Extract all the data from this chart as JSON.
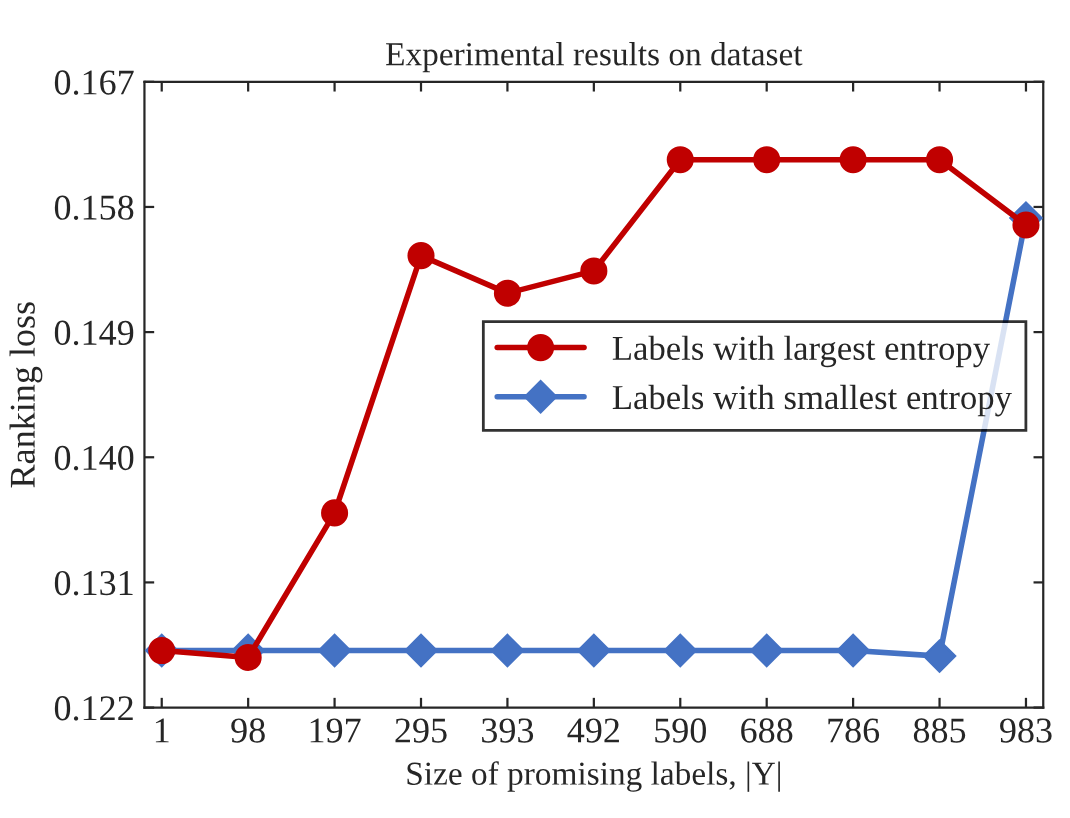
{
  "chart_data": {
    "type": "line",
    "title": "Experimental results on dataset",
    "xlabel": "Size of promising labels, |Y|",
    "ylabel": "Ranking loss",
    "categories": [
      "1",
      "98",
      "197",
      "295",
      "393",
      "492",
      "590",
      "688",
      "786",
      "885",
      "983"
    ],
    "series": [
      {
        "name": "Labels with largest entropy",
        "color": "#c00000",
        "marker": "circle",
        "values": [
          0.1261,
          0.1256,
          0.136,
          0.1545,
          0.1518,
          0.1534,
          0.1614,
          0.1614,
          0.1614,
          0.1614,
          0.1567
        ]
      },
      {
        "name": "Labels with smallest entropy",
        "color": "#4472c4",
        "marker": "diamond",
        "values": [
          0.1261,
          0.1261,
          0.1261,
          0.1261,
          0.1261,
          0.1261,
          0.1261,
          0.1261,
          0.1261,
          0.1257,
          0.1572
        ]
      }
    ],
    "ylim": [
      0.122,
      0.167
    ],
    "yticks": [
      0.122,
      0.131,
      {
        "value": 0.14,
        "label": "0.140"
      },
      0.149,
      0.158,
      0.167
    ],
    "grid": false,
    "legend": "right",
    "line_style": "solid"
  }
}
